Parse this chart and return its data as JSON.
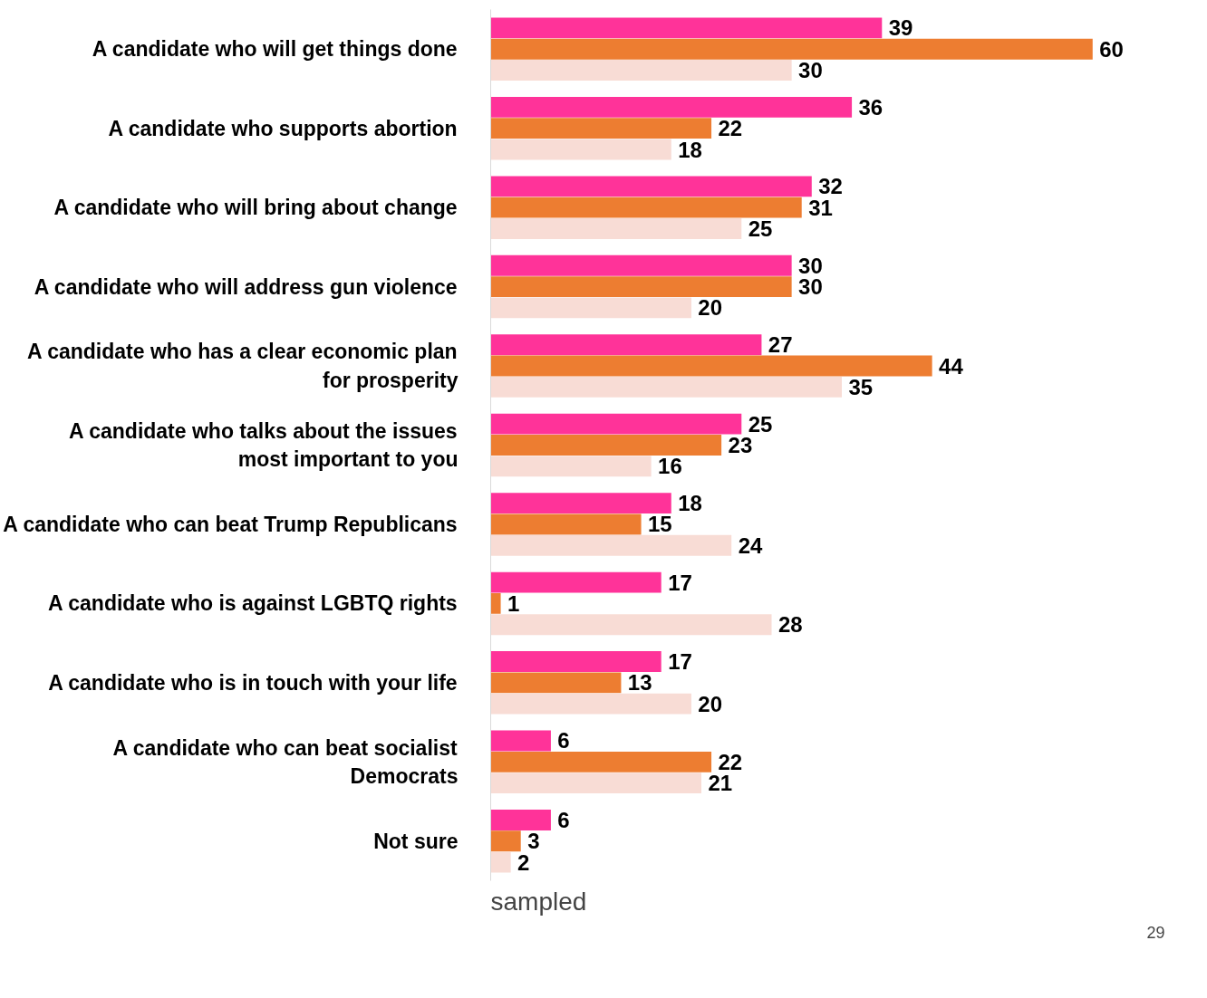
{
  "chart_data": {
    "type": "bar",
    "orientation": "horizontal",
    "data_labels": true,
    "grid": false,
    "categories": [
      "A candidate who will get things done",
      "A candidate who supports abortion",
      "A candidate who will bring about change",
      "A candidate who will address gun violence",
      "A candidate who has a clear economic plan for prosperity",
      "A candidate who talks about the issues most important to you",
      "A candidate who can beat Trump Republicans",
      "A candidate who is against LGBTQ rights",
      "A candidate who is in touch with your life",
      "A candidate who can beat socialist Democrats",
      "Not sure"
    ],
    "series": [
      {
        "color": "#ff3399",
        "values": [
          39,
          36,
          32,
          30,
          27,
          25,
          18,
          17,
          17,
          6,
          6
        ]
      },
      {
        "color": "#ed7d31",
        "values": [
          60,
          22,
          31,
          30,
          44,
          23,
          15,
          1,
          13,
          22,
          3
        ]
      },
      {
        "color": "#f8dcd5",
        "values": [
          30,
          18,
          25,
          20,
          35,
          16,
          24,
          28,
          20,
          21,
          2
        ]
      }
    ],
    "annotations": [
      "sampled",
      "29"
    ]
  }
}
